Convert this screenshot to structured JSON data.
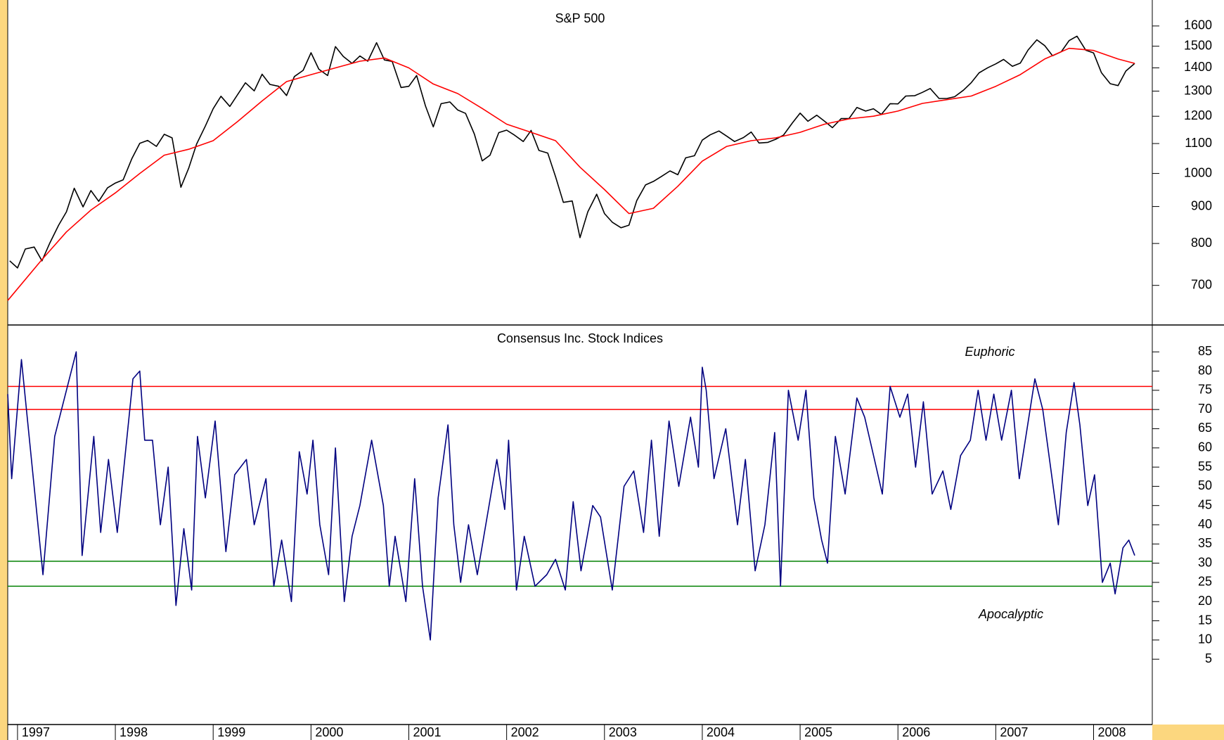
{
  "chart_data": [
    {
      "type": "line",
      "title": "S&P 500",
      "ylog": true,
      "grid": false,
      "xlim": [
        1996.9,
        2008.6
      ],
      "ylim": [
        617,
        1738
      ],
      "yticks": [
        700,
        800,
        900,
        1000,
        1100,
        1200,
        1300,
        1400,
        1500,
        1600
      ],
      "x": [
        1996.92,
        1997.0,
        1997.08,
        1997.17,
        1997.25,
        1997.33,
        1997.42,
        1997.5,
        1997.58,
        1997.67,
        1997.75,
        1997.83,
        1997.92,
        1998.0,
        1998.08,
        1998.17,
        1998.25,
        1998.33,
        1998.42,
        1998.5,
        1998.58,
        1998.67,
        1998.75,
        1998.83,
        1998.92,
        1999.0,
        1999.08,
        1999.17,
        1999.25,
        1999.33,
        1999.42,
        1999.5,
        1999.58,
        1999.67,
        1999.75,
        1999.83,
        1999.92,
        2000.0,
        2000.08,
        2000.17,
        2000.25,
        2000.33,
        2000.42,
        2000.5,
        2000.58,
        2000.67,
        2000.75,
        2000.83,
        2000.92,
        2001.0,
        2001.08,
        2001.17,
        2001.25,
        2001.33,
        2001.42,
        2001.5,
        2001.58,
        2001.67,
        2001.75,
        2001.83,
        2001.92,
        2002.0,
        2002.08,
        2002.17,
        2002.25,
        2002.33,
        2002.42,
        2002.5,
        2002.58,
        2002.67,
        2002.75,
        2002.83,
        2002.92,
        2003.0,
        2003.08,
        2003.17,
        2003.25,
        2003.33,
        2003.42,
        2003.5,
        2003.58,
        2003.67,
        2003.75,
        2003.83,
        2003.92,
        2004.0,
        2004.08,
        2004.17,
        2004.25,
        2004.33,
        2004.42,
        2004.5,
        2004.58,
        2004.67,
        2004.75,
        2004.83,
        2004.92,
        2005.0,
        2005.08,
        2005.17,
        2005.25,
        2005.33,
        2005.42,
        2005.5,
        2005.58,
        2005.67,
        2005.75,
        2005.83,
        2005.92,
        2006.0,
        2006.08,
        2006.17,
        2006.25,
        2006.33,
        2006.42,
        2006.5,
        2006.58,
        2006.67,
        2006.75,
        2006.83,
        2006.92,
        2007.0,
        2007.08,
        2007.17,
        2007.25,
        2007.33,
        2007.42,
        2007.5,
        2007.58,
        2007.67,
        2007.75,
        2007.83,
        2007.92,
        2008.0,
        2008.08,
        2008.17,
        2008.25,
        2008.33,
        2008.42
      ],
      "series": [
        {
          "color": "#000000",
          "values": [
            757,
            740,
            786,
            791,
            757,
            801,
            848,
            885,
            954,
            899,
            947,
            915,
            955,
            970,
            980,
            1049,
            1101,
            1111,
            1090,
            1133,
            1120,
            957,
            1017,
            1098,
            1163,
            1229,
            1279,
            1238,
            1286,
            1335,
            1301,
            1372,
            1328,
            1320,
            1282,
            1362,
            1389,
            1469,
            1394,
            1366,
            1498,
            1452,
            1420,
            1454,
            1430,
            1517,
            1436,
            1429,
            1315,
            1320,
            1366,
            1240,
            1160,
            1249,
            1256,
            1224,
            1211,
            1134,
            1041,
            1060,
            1139,
            1148,
            1130,
            1107,
            1147,
            1076,
            1067,
            990,
            912,
            916,
            815,
            885,
            936,
            880,
            856,
            841,
            848,
            917,
            964,
            975,
            990,
            1008,
            996,
            1051,
            1058,
            1112,
            1131,
            1145,
            1126,
            1107,
            1121,
            1141,
            1102,
            1104,
            1115,
            1130,
            1174,
            1212,
            1181,
            1204,
            1181,
            1157,
            1191,
            1191,
            1234,
            1220,
            1229,
            1207,
            1249,
            1248,
            1280,
            1281,
            1295,
            1311,
            1270,
            1270,
            1277,
            1304,
            1336,
            1378,
            1401,
            1418,
            1438,
            1407,
            1421,
            1482,
            1531,
            1503,
            1455,
            1474,
            1527,
            1549,
            1481,
            1468,
            1379,
            1331,
            1323,
            1386,
            1420
          ]
        },
        {
          "color": "#ff0000",
          "x": [
            1996.9,
            1997.25,
            1997.5,
            1997.75,
            1998.0,
            1998.25,
            1998.5,
            1998.75,
            1999.0,
            1999.25,
            1999.5,
            1999.75,
            2000.0,
            2000.25,
            2000.5,
            2000.75,
            2001.0,
            2001.25,
            2001.5,
            2001.75,
            2002.0,
            2002.25,
            2002.5,
            2002.75,
            2003.0,
            2003.25,
            2003.5,
            2003.75,
            2004.0,
            2004.25,
            2004.5,
            2004.75,
            2005.0,
            2005.25,
            2005.5,
            2005.75,
            2006.0,
            2006.25,
            2006.5,
            2006.75,
            2007.0,
            2007.25,
            2007.5,
            2007.75,
            2008.0,
            2008.25,
            2008.42
          ],
          "values": [
            667,
            760,
            830,
            890,
            940,
            1000,
            1060,
            1080,
            1110,
            1180,
            1260,
            1340,
            1370,
            1400,
            1430,
            1445,
            1400,
            1330,
            1290,
            1230,
            1170,
            1140,
            1110,
            1020,
            950,
            880,
            895,
            960,
            1040,
            1090,
            1110,
            1120,
            1140,
            1170,
            1190,
            1200,
            1220,
            1250,
            1265,
            1280,
            1320,
            1370,
            1440,
            1490,
            1480,
            1440,
            1420
          ]
        }
      ]
    },
    {
      "type": "line",
      "title": "Consensus Inc. Stock Indices",
      "grid": false,
      "xlim": [
        1996.9,
        2008.6
      ],
      "ylim": [
        -12,
        92
      ],
      "yticks": [
        5,
        10,
        15,
        20,
        25,
        30,
        35,
        40,
        45,
        50,
        55,
        60,
        65,
        70,
        75,
        80,
        85
      ],
      "xticks": [
        1997,
        1998,
        1999,
        2000,
        2001,
        2002,
        2003,
        2004,
        2005,
        2006,
        2007,
        2008
      ],
      "reference_lines": [
        {
          "value": 76,
          "color": "#ff0000"
        },
        {
          "value": 70,
          "color": "#ff0000"
        },
        {
          "value": 30.5,
          "color": "#008000"
        },
        {
          "value": 24,
          "color": "#008000"
        }
      ],
      "annotations": [
        "Euphoric",
        "Apocalyptic"
      ],
      "x": [
        1996.9,
        1996.94,
        1997.04,
        1997.26,
        1997.38,
        1997.6,
        1997.66,
        1997.78,
        1997.85,
        1997.93,
        1998.02,
        1998.18,
        1998.25,
        1998.3,
        1998.38,
        1998.46,
        1998.54,
        1998.62,
        1998.7,
        1998.78,
        1998.84,
        1998.92,
        1999.02,
        1999.13,
        1999.22,
        1999.34,
        1999.42,
        1999.54,
        1999.62,
        1999.7,
        1999.8,
        1999.88,
        1999.96,
        2000.02,
        2000.09,
        2000.18,
        2000.25,
        2000.34,
        2000.42,
        2000.5,
        2000.62,
        2000.74,
        2000.8,
        2000.86,
        2000.97,
        2001.06,
        2001.14,
        2001.22,
        2001.3,
        2001.4,
        2001.46,
        2001.53,
        2001.61,
        2001.7,
        2001.82,
        2001.9,
        2001.98,
        2002.02,
        2002.1,
        2002.18,
        2002.29,
        2002.41,
        2002.5,
        2002.6,
        2002.68,
        2002.76,
        2002.88,
        2002.96,
        2003.08,
        2003.2,
        2003.3,
        2003.4,
        2003.48,
        2003.56,
        2003.66,
        2003.76,
        2003.88,
        2003.96,
        2004.0,
        2004.04,
        2004.12,
        2004.24,
        2004.36,
        2004.44,
        2004.54,
        2004.64,
        2004.74,
        2004.8,
        2004.88,
        2004.98,
        2005.06,
        2005.14,
        2005.22,
        2005.28,
        2005.36,
        2005.46,
        2005.58,
        2005.66,
        2005.76,
        2005.84,
        2005.92,
        2006.02,
        2006.1,
        2006.18,
        2006.26,
        2006.35,
        2006.46,
        2006.54,
        2006.64,
        2006.74,
        2006.82,
        2006.9,
        2006.98,
        2007.06,
        2007.16,
        2007.24,
        2007.32,
        2007.4,
        2007.48,
        2007.56,
        2007.64,
        2007.72,
        2007.8,
        2007.86,
        2007.94,
        2008.01,
        2008.09,
        2008.17,
        2008.22,
        2008.3,
        2008.36,
        2008.42
      ],
      "series": [
        {
          "color": "#000080",
          "values": [
            74,
            52,
            83,
            27,
            63,
            85,
            32,
            63,
            38,
            57,
            38,
            78,
            80,
            62,
            62,
            40,
            55,
            19,
            39,
            23,
            63,
            47,
            67,
            33,
            53,
            57,
            40,
            52,
            24,
            36,
            20,
            59,
            48,
            62,
            40,
            27,
            60,
            20,
            37,
            45,
            62,
            45,
            24,
            37,
            20,
            52,
            24,
            10,
            47,
            66,
            40,
            25,
            40,
            27,
            45,
            57,
            44,
            62,
            23,
            37,
            24,
            27,
            31,
            23,
            46,
            28,
            45,
            42,
            23,
            50,
            54,
            38,
            62,
            37,
            67,
            50,
            68,
            55,
            81,
            75,
            52,
            65,
            40,
            57,
            28,
            40,
            64,
            24,
            75,
            62,
            75,
            47,
            36,
            30,
            63,
            48,
            73,
            68,
            57,
            48,
            76,
            68,
            74,
            55,
            72,
            48,
            54,
            44,
            58,
            62,
            75,
            62,
            74,
            62,
            75,
            52,
            65,
            78,
            70,
            55,
            40,
            64,
            77,
            66,
            45,
            53,
            25,
            30,
            22,
            34,
            36,
            32
          ]
        }
      ]
    }
  ]
}
